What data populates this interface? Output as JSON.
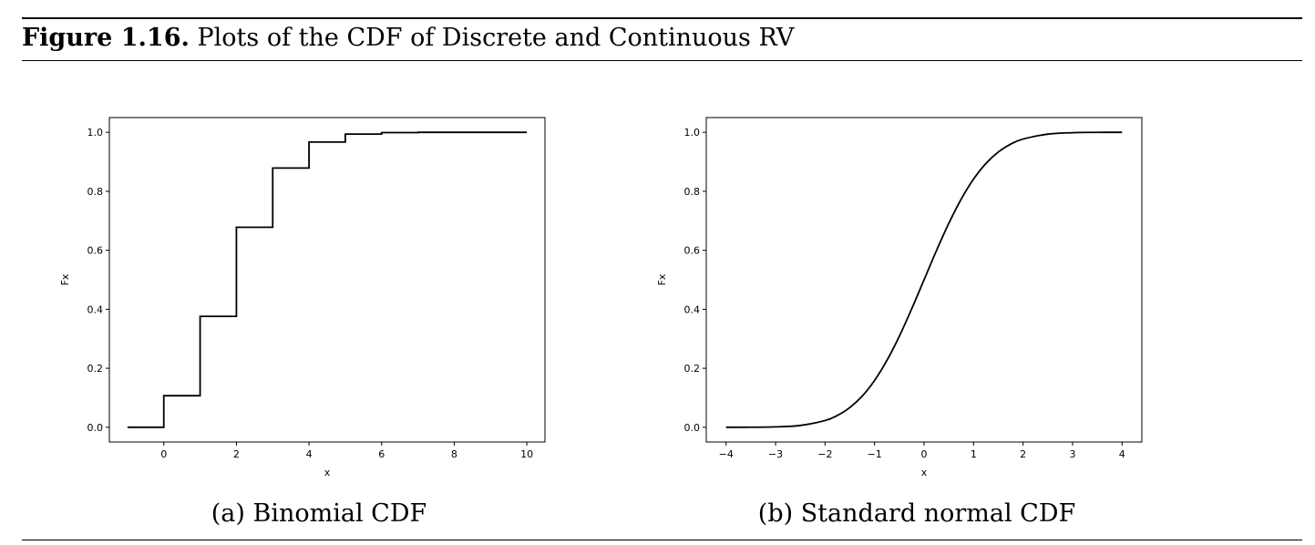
{
  "figure": {
    "label": "Figure 1.16.",
    "title": "Plots of the CDF of Discrete and Continuous RV"
  },
  "chart_data": [
    {
      "type": "line",
      "step": true,
      "caption": "(a) Binomial CDF",
      "xlabel": "x",
      "ylabel": "Fx",
      "xlim": [
        -1.5,
        10.5
      ],
      "ylim": [
        -0.05,
        1.05
      ],
      "xticks": [
        0,
        2,
        4,
        6,
        8,
        10
      ],
      "yticks": [
        0.0,
        0.2,
        0.4,
        0.6,
        0.8,
        1.0
      ],
      "xtick_labels": [
        "0",
        "2",
        "4",
        "6",
        "8",
        "10"
      ],
      "ytick_labels": [
        "0.0",
        "0.2",
        "0.4",
        "0.6",
        "0.8",
        "1.0"
      ],
      "grid": false,
      "line_color": "#000000",
      "x": [
        -1,
        0,
        1,
        2,
        3,
        4,
        5,
        6,
        7,
        8,
        9,
        10
      ],
      "y": [
        0.0,
        0.107,
        0.376,
        0.678,
        0.879,
        0.967,
        0.994,
        0.999,
        1.0,
        1.0,
        1.0,
        1.0
      ]
    },
    {
      "type": "line",
      "caption": "(b) Standard normal CDF",
      "xlabel": "x",
      "ylabel": "Fx",
      "xlim": [
        -4.4,
        4.4
      ],
      "ylim": [
        -0.05,
        1.05
      ],
      "xticks": [
        -4,
        -3,
        -2,
        -1,
        0,
        1,
        2,
        3,
        4
      ],
      "yticks": [
        0.0,
        0.2,
        0.4,
        0.6,
        0.8,
        1.0
      ],
      "xtick_labels": [
        "−4",
        "−3",
        "−2",
        "−1",
        "0",
        "1",
        "2",
        "3",
        "4"
      ],
      "ytick_labels": [
        "0.0",
        "0.2",
        "0.4",
        "0.6",
        "0.8",
        "1.0"
      ],
      "grid": false,
      "line_color": "#000000",
      "x": [
        -4.0,
        -3.5,
        -3.0,
        -2.5,
        -2.0,
        -1.75,
        -1.5,
        -1.25,
        -1.0,
        -0.75,
        -0.5,
        -0.25,
        0.0,
        0.25,
        0.5,
        0.75,
        1.0,
        1.25,
        1.5,
        1.75,
        2.0,
        2.5,
        3.0,
        3.5,
        4.0
      ],
      "y": [
        0.0,
        0.0002,
        0.0013,
        0.0062,
        0.0228,
        0.0401,
        0.0668,
        0.1056,
        0.1587,
        0.2266,
        0.3085,
        0.4013,
        0.5,
        0.5987,
        0.6915,
        0.7734,
        0.8413,
        0.8944,
        0.9332,
        0.9599,
        0.9772,
        0.9938,
        0.9987,
        0.9998,
        1.0
      ]
    }
  ]
}
